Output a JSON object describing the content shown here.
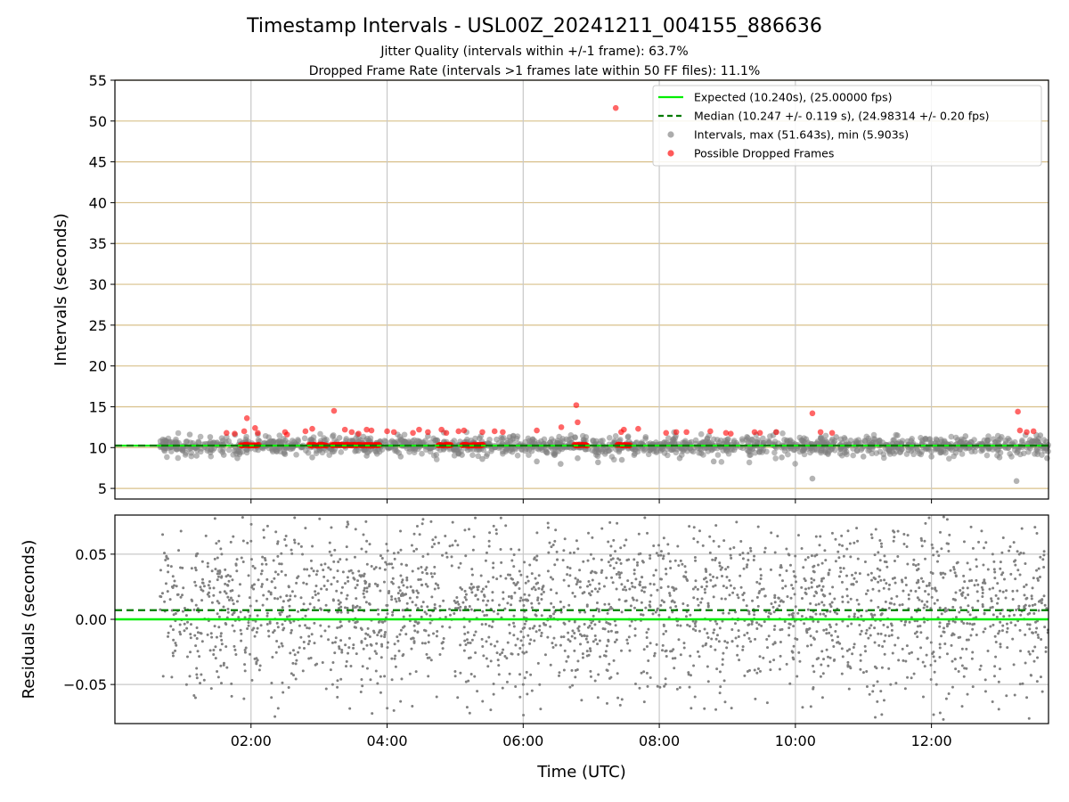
{
  "figure": {
    "title": "Timestamp Intervals - USL00Z_20241211_004155_886636",
    "subtitle_1": "Jitter Quality (intervals within +/-1 frame): 63.7%",
    "subtitle_2": "Dropped Frame Rate (intervals >1 frames late within 50 FF files): 11.1%"
  },
  "colors": {
    "expected": "#00ee00",
    "median": "#007a00",
    "intervals": "#808080",
    "dropped": "#ff0000",
    "top_grid": "#d8c08a",
    "grid": "#c8c8c8"
  },
  "chart_data": [
    {
      "type": "scatter",
      "panel": "intervals",
      "ylabel": "Intervals (seconds)",
      "xlabel": "",
      "x_unit": "hours UTC",
      "xlim": [
        0.0,
        13.72
      ],
      "ylim": [
        3.7,
        55
      ],
      "yticks": [
        5,
        10,
        15,
        20,
        25,
        30,
        35,
        40,
        45,
        50,
        55
      ],
      "ytick_labels": [
        "5",
        "10",
        "15",
        "20",
        "25",
        "30",
        "35",
        "40",
        "45",
        "50",
        "55"
      ],
      "xticks": [
        2,
        4,
        6,
        8,
        10,
        12
      ],
      "grid": true,
      "legend_position": "upper right",
      "expected": 10.24,
      "median": 10.247,
      "legend": [
        {
          "label": "Expected (10.240s), (25.00000 fps)",
          "style": "line",
          "color": "#00ee00"
        },
        {
          "label": "Median (10.247 +/- 0.119 s), (24.98314 +/- 0.20 fps)",
          "style": "dashed",
          "color": "#007a00"
        },
        {
          "label": "Intervals, max (51.643s), min (5.903s)",
          "style": "marker",
          "color": "#808080"
        },
        {
          "label": "Possible Dropped Frames",
          "style": "marker",
          "color": "#ff0000"
        }
      ],
      "series": [
        {
          "name": "Intervals, max (51.643s), min (5.903s)",
          "point_count": "approx. 4700 points from 00:41 to 13:45 UTC, mostly between 8.5 and 11.5 s",
          "points": [
            [
              0.66,
              10.24
            ],
            [
              1.0,
              10.2
            ],
            [
              1.1,
              11.6
            ],
            [
              1.2,
              9.0
            ],
            [
              1.4,
              11.3
            ],
            [
              1.6,
              9.1
            ],
            [
              1.8,
              8.7
            ],
            [
              2.1,
              11.6
            ],
            [
              2.5,
              9.2
            ],
            [
              2.9,
              8.8
            ],
            [
              3.3,
              11.2
            ],
            [
              3.7,
              9.0
            ],
            [
              4.2,
              8.9
            ],
            [
              4.6,
              11.4
            ],
            [
              5.1,
              9.1
            ],
            [
              5.4,
              8.6
            ],
            [
              5.8,
              11.3
            ],
            [
              6.2,
              8.3
            ],
            [
              6.55,
              8.0
            ],
            [
              6.8,
              8.7
            ],
            [
              7.1,
              8.2
            ],
            [
              7.45,
              8.5
            ],
            [
              7.8,
              11.3
            ],
            [
              8.3,
              8.7
            ],
            [
              8.8,
              8.3
            ],
            [
              9.3,
              11.2
            ],
            [
              9.8,
              8.8
            ],
            [
              10.25,
              6.2
            ],
            [
              10.6,
              11.3
            ],
            [
              11.0,
              8.9
            ],
            [
              11.5,
              11.5
            ],
            [
              12.0,
              8.9
            ],
            [
              12.5,
              11.4
            ],
            [
              13.0,
              8.8
            ],
            [
              13.25,
              5.9
            ],
            [
              13.6,
              11.5
            ],
            [
              13.7,
              8.7
            ]
          ]
        },
        {
          "name": "Possible Dropped Frames",
          "points": [
            [
              1.64,
              11.8
            ],
            [
              1.76,
              11.7
            ],
            [
              1.9,
              12.0
            ],
            [
              1.94,
              13.6
            ],
            [
              2.06,
              12.4
            ],
            [
              2.1,
              11.8
            ],
            [
              2.5,
              11.9
            ],
            [
              2.53,
              11.6
            ],
            [
              2.8,
              12.0
            ],
            [
              2.9,
              12.3
            ],
            [
              3.22,
              14.5
            ],
            [
              3.38,
              12.2
            ],
            [
              3.48,
              11.9
            ],
            [
              3.58,
              11.7
            ],
            [
              3.7,
              12.2
            ],
            [
              3.77,
              12.1
            ],
            [
              4.0,
              12.0
            ],
            [
              4.1,
              11.9
            ],
            [
              4.38,
              11.8
            ],
            [
              4.47,
              12.2
            ],
            [
              4.6,
              11.9
            ],
            [
              4.8,
              12.2
            ],
            [
              4.87,
              11.8
            ],
            [
              5.05,
              12.0
            ],
            [
              5.13,
              12.1
            ],
            [
              5.4,
              11.9
            ],
            [
              5.58,
              12.0
            ],
            [
              5.7,
              11.9
            ],
            [
              6.2,
              12.1
            ],
            [
              6.56,
              12.5
            ],
            [
              6.78,
              15.2
            ],
            [
              6.8,
              13.1
            ],
            [
              7.36,
              51.6
            ],
            [
              7.44,
              11.9
            ],
            [
              7.48,
              12.2
            ],
            [
              7.69,
              12.3
            ],
            [
              8.1,
              11.8
            ],
            [
              8.25,
              11.9
            ],
            [
              8.4,
              11.9
            ],
            [
              8.75,
              12.0
            ],
            [
              8.98,
              11.8
            ],
            [
              9.05,
              11.7
            ],
            [
              9.4,
              11.9
            ],
            [
              9.48,
              11.8
            ],
            [
              9.72,
              11.9
            ],
            [
              10.25,
              14.2
            ],
            [
              10.37,
              11.9
            ],
            [
              10.54,
              11.8
            ],
            [
              13.27,
              14.4
            ],
            [
              13.3,
              12.1
            ],
            [
              13.4,
              11.9
            ],
            [
              13.5,
              12.0
            ]
          ],
          "bands": [
            [
              1.85,
              2.12,
              10.3
            ],
            [
              2.85,
              3.12,
              10.3
            ],
            [
              3.18,
              3.9,
              10.3
            ],
            [
              4.75,
              4.95,
              10.3
            ],
            [
              5.1,
              5.42,
              10.3
            ],
            [
              6.75,
              6.95,
              10.3
            ],
            [
              7.38,
              7.58,
              10.3
            ]
          ]
        }
      ]
    },
    {
      "type": "scatter",
      "panel": "residuals",
      "ylabel": "Residuals (seconds)",
      "xlabel": "Time (UTC)",
      "x_unit": "hours UTC",
      "xlim": [
        0.0,
        13.72
      ],
      "ylim": [
        -0.08,
        0.08
      ],
      "yticks": [
        -0.05,
        0.0,
        0.05
      ],
      "ytick_labels": [
        "−0.05",
        "0.00",
        "0.05"
      ],
      "xticks": [
        2,
        4,
        6,
        8,
        10,
        12
      ],
      "xtick_labels": [
        "02:00",
        "04:00",
        "06:00",
        "08:00",
        "10:00",
        "12:00"
      ],
      "grid": true,
      "expected_level": 0.0,
      "median_level": 0.007,
      "series": [
        {
          "name": "Residuals",
          "point_count": "approx. 4700 points from 00:41 to 13:45 UTC, spread across about -0.08 to +0.08 s, densest near 0.00 to 0.03",
          "points": [
            [
              0.7,
              0.02
            ],
            [
              0.9,
              -0.02
            ],
            [
              1.2,
              0.05
            ],
            [
              1.5,
              -0.04
            ],
            [
              2.0,
              0.06
            ],
            [
              2.3,
              -0.06
            ],
            [
              2.8,
              0.07
            ],
            [
              3.2,
              -0.05
            ],
            [
              3.7,
              0.06
            ],
            [
              4.1,
              -0.07
            ],
            [
              4.6,
              0.05
            ],
            [
              5.0,
              -0.04
            ],
            [
              5.5,
              0.06
            ],
            [
              6.0,
              -0.05
            ],
            [
              6.6,
              0.03
            ],
            [
              7.1,
              -0.06
            ],
            [
              7.7,
              0.05
            ],
            [
              8.2,
              -0.03
            ],
            [
              8.8,
              0.06
            ],
            [
              9.3,
              -0.04
            ],
            [
              9.9,
              0.05
            ],
            [
              10.4,
              -0.06
            ],
            [
              10.9,
              0.07
            ],
            [
              11.4,
              -0.05
            ],
            [
              11.9,
              0.06
            ],
            [
              12.4,
              -0.04
            ],
            [
              12.9,
              0.05
            ],
            [
              13.4,
              -0.06
            ],
            [
              13.65,
              0.04
            ]
          ]
        }
      ]
    }
  ]
}
